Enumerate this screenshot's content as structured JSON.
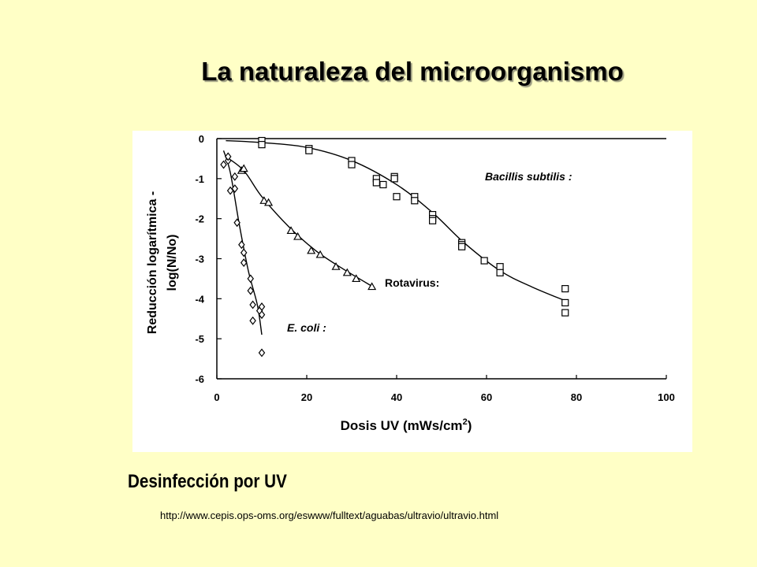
{
  "slide": {
    "title": "La naturaleza del microorganismo",
    "caption": "Desinfección por UV",
    "source_url": "http://www.cepis.ops-oms.org/eswww/fulltext/aguabas/ultravio/ultravio.html"
  },
  "chart_data": {
    "type": "scatter",
    "title": "",
    "xlabel": "Dosis UV (mWs/cm",
    "xlabel_superscript": "2",
    "xlabel_suffix": ")",
    "ylabel_line1": "Reducción logarítmica -",
    "ylabel_line2": "log(N/No)",
    "xlim": [
      0,
      100
    ],
    "ylim": [
      -6,
      0
    ],
    "x_ticks": [
      0,
      20,
      40,
      60,
      80,
      100
    ],
    "y_ticks": [
      0,
      -1,
      -2,
      -3,
      -4,
      -5,
      -6
    ],
    "grid": false,
    "legend": "inline labels next to each curve",
    "series": [
      {
        "label": "Bacillis subtilis :",
        "marker": "square",
        "points": [
          [
            10,
            -0.05
          ],
          [
            10,
            -0.15
          ],
          [
            20.5,
            -0.25
          ],
          [
            20.5,
            -0.3
          ],
          [
            30,
            -0.55
          ],
          [
            30,
            -0.65
          ],
          [
            35.5,
            -1.0
          ],
          [
            35.5,
            -1.1
          ],
          [
            37,
            -1.15
          ],
          [
            39.5,
            -0.95
          ],
          [
            39.5,
            -1.0
          ],
          [
            40,
            -1.45
          ],
          [
            44,
            -1.45
          ],
          [
            44,
            -1.55
          ],
          [
            48,
            -1.9
          ],
          [
            48,
            -2.0
          ],
          [
            48,
            -2.05
          ],
          [
            54.5,
            -2.6
          ],
          [
            54.5,
            -2.65
          ],
          [
            54.5,
            -2.7
          ],
          [
            59.5,
            -3.05
          ],
          [
            63,
            -3.2
          ],
          [
            63,
            -3.35
          ],
          [
            77.5,
            -3.75
          ],
          [
            77.5,
            -4.1
          ],
          [
            77.5,
            -4.35
          ]
        ],
        "curve": [
          [
            2,
            -0.05
          ],
          [
            10,
            -0.1
          ],
          [
            20,
            -0.22
          ],
          [
            30,
            -0.55
          ],
          [
            40,
            -1.15
          ],
          [
            48,
            -1.85
          ],
          [
            55,
            -2.6
          ],
          [
            63,
            -3.3
          ],
          [
            70,
            -3.7
          ],
          [
            77.5,
            -4.05
          ]
        ]
      },
      {
        "label": "Rotavirus:",
        "marker": "triangle",
        "points": [
          [
            5.5,
            -0.8
          ],
          [
            6,
            -0.75
          ],
          [
            10.5,
            -1.55
          ],
          [
            11.5,
            -1.6
          ],
          [
            16.5,
            -2.3
          ],
          [
            18,
            -2.45
          ],
          [
            21,
            -2.8
          ],
          [
            23,
            -2.9
          ],
          [
            26.5,
            -3.2
          ],
          [
            29,
            -3.35
          ],
          [
            31,
            -3.5
          ],
          [
            34.5,
            -3.7
          ]
        ],
        "curve": [
          [
            2,
            -0.45
          ],
          [
            6,
            -0.8
          ],
          [
            10,
            -1.45
          ],
          [
            16,
            -2.2
          ],
          [
            22,
            -2.8
          ],
          [
            28,
            -3.25
          ],
          [
            35,
            -3.72
          ]
        ]
      },
      {
        "label": "E. coli :",
        "marker": "diamond",
        "points": [
          [
            1.5,
            -0.65
          ],
          [
            2.5,
            -0.55
          ],
          [
            2.5,
            -0.45
          ],
          [
            3,
            -1.3
          ],
          [
            4,
            -0.95
          ],
          [
            4,
            -1.25
          ],
          [
            4.5,
            -2.1
          ],
          [
            5.5,
            -2.65
          ],
          [
            6,
            -2.85
          ],
          [
            6,
            -3.1
          ],
          [
            7.5,
            -3.5
          ],
          [
            7.5,
            -3.8
          ],
          [
            8,
            -4.15
          ],
          [
            8,
            -4.55
          ],
          [
            9.5,
            -4.3
          ],
          [
            10,
            -4.2
          ],
          [
            10,
            -4.4
          ],
          [
            10,
            -5.35
          ]
        ],
        "curve": [
          [
            1.5,
            -0.3
          ],
          [
            3,
            -0.85
          ],
          [
            5,
            -2.15
          ],
          [
            7,
            -3.3
          ],
          [
            9,
            -4.15
          ],
          [
            10,
            -4.9
          ]
        ]
      }
    ]
  }
}
